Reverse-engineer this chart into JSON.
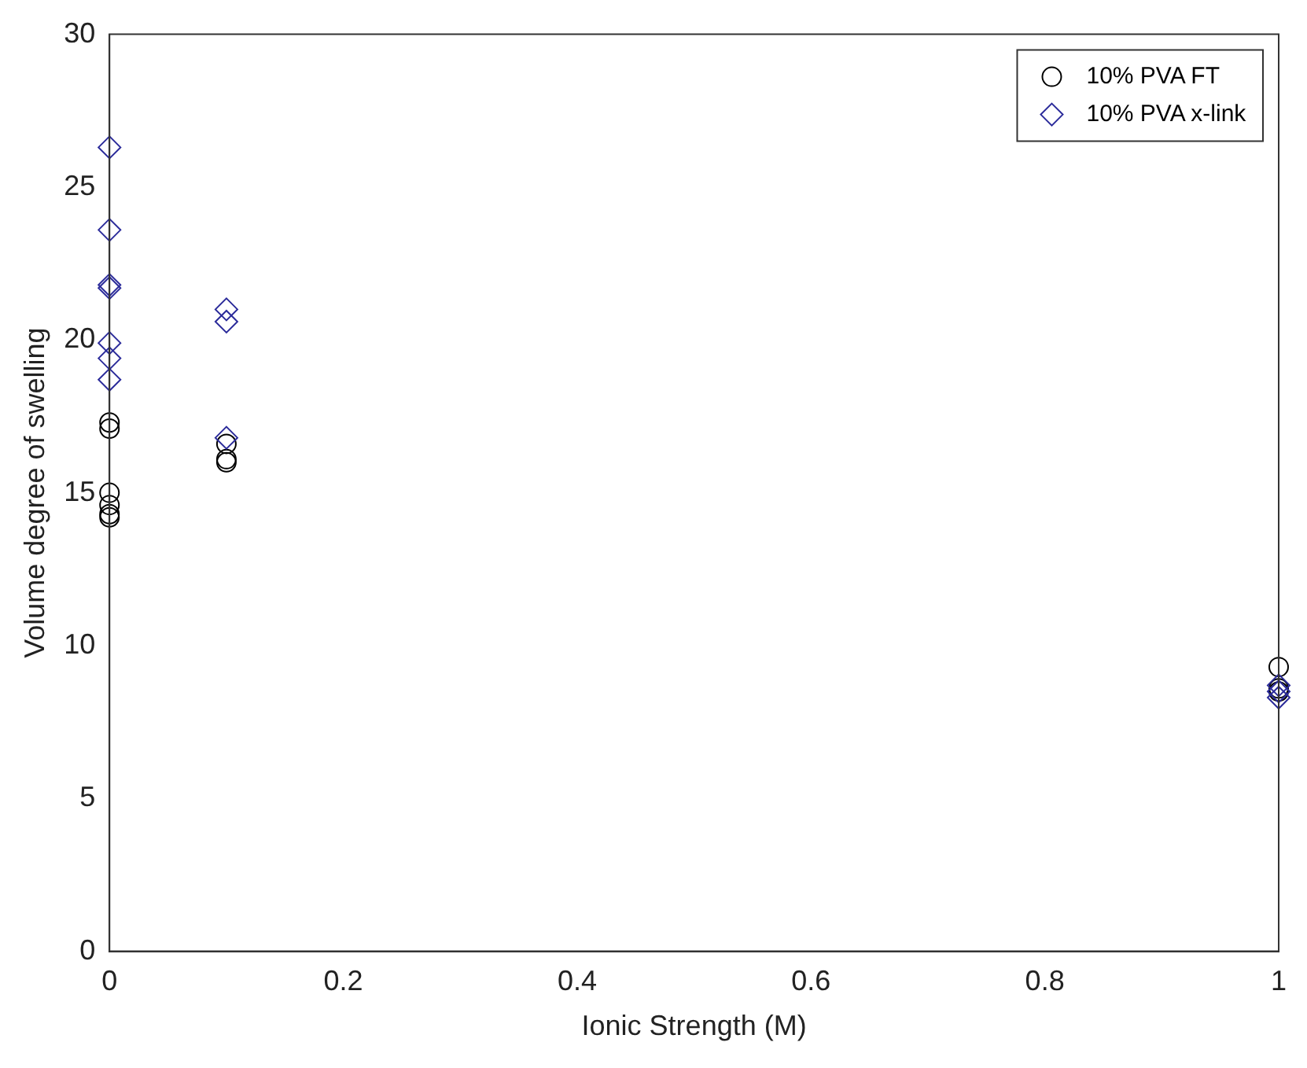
{
  "chart_data": {
    "type": "scatter",
    "xlabel": "Ionic Strength (M)",
    "ylabel": "Volume degree of swelling",
    "xlim": [
      0,
      1
    ],
    "xticks": [
      0,
      0.2,
      0.4,
      0.6,
      0.8,
      1
    ],
    "ylim": [
      0,
      30
    ],
    "yticks": [
      0,
      5,
      10,
      15,
      20,
      25,
      30
    ],
    "grid": false,
    "legend": "top right",
    "series": [
      {
        "name": "10% PVA FT",
        "color": "#000000",
        "marker": "circle",
        "x": [
          0,
          0,
          0,
          0,
          0,
          0,
          0.1,
          0.1,
          0.1,
          1,
          1,
          1
        ],
        "values": [
          17.3,
          17.1,
          15.0,
          14.6,
          14.3,
          14.2,
          16.6,
          16.1,
          16.0,
          9.3,
          8.6,
          8.5
        ]
      },
      {
        "name": "10% PVA x-link",
        "color": "#2b2b9a",
        "marker": "diamond",
        "x": [
          0,
          0,
          0,
          0,
          0,
          0,
          0,
          0.1,
          0.1,
          0.1,
          1,
          1,
          1
        ],
        "values": [
          26.3,
          23.6,
          21.8,
          21.7,
          19.9,
          19.4,
          18.7,
          21.0,
          20.6,
          16.8,
          8.7,
          8.5,
          8.3
        ]
      }
    ]
  }
}
